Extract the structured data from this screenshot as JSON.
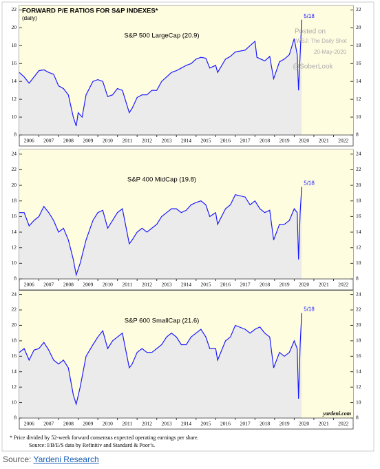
{
  "chart_data": [
    {
      "type": "line",
      "title": "FORWARD P/E RATIOS FOR S&P INDEXES*",
      "subtitle": "(daily)",
      "label": "S&P 500 LargeCap (20.9)",
      "annotations": [
        "5/18",
        "Posted on",
        "WSJ: The Daily Shot",
        "20-May-2020",
        "@SoberLook"
      ],
      "x": [
        2006.0,
        2006.25,
        2006.5,
        2006.75,
        2007.0,
        2007.25,
        2007.5,
        2007.75,
        2008.0,
        2008.25,
        2008.5,
        2008.75,
        2008.9,
        2009.0,
        2009.2,
        2009.4,
        2009.75,
        2010.0,
        2010.25,
        2010.5,
        2010.75,
        2011.0,
        2011.25,
        2011.6,
        2011.75,
        2012.0,
        2012.25,
        2012.5,
        2012.75,
        2013.0,
        2013.25,
        2013.5,
        2013.75,
        2014.0,
        2014.25,
        2014.5,
        2014.75,
        2015.0,
        2015.25,
        2015.5,
        2015.7,
        2016.0,
        2016.1,
        2016.5,
        2016.75,
        2017.0,
        2017.5,
        2017.75,
        2018.0,
        2018.1,
        2018.5,
        2018.75,
        2018.95,
        2019.25,
        2019.5,
        2019.75,
        2020.0,
        2020.15,
        2020.22,
        2020.3,
        2020.38
      ],
      "series": [
        {
          "name": "S&P 500 LargeCap",
          "color": "#1a1aff",
          "values": [
            15,
            14.5,
            13.8,
            14.5,
            15.2,
            15.3,
            15,
            14.8,
            13.5,
            13.2,
            12.5,
            10,
            9,
            10.5,
            10,
            12.5,
            14,
            14.2,
            14,
            12.3,
            12.5,
            13.2,
            13,
            10.5,
            11,
            12.2,
            12.5,
            12.5,
            13,
            13,
            14,
            14.5,
            15,
            15.2,
            15.5,
            15.8,
            16,
            16.5,
            16.7,
            16.6,
            15.5,
            15.8,
            15,
            16.5,
            16.8,
            17.3,
            17.5,
            18,
            18.5,
            16.7,
            16.3,
            16.8,
            14.3,
            16.2,
            16.5,
            17,
            18.8,
            17,
            13,
            17,
            20.9
          ]
        }
      ],
      "xlim": [
        2006,
        2023
      ],
      "ylim": [
        8,
        22.5
      ],
      "yticks": [
        8,
        10,
        12,
        14,
        16,
        18,
        20,
        22
      ],
      "xticks": [
        {
          "value": 2006.5,
          "label": "2006"
        },
        {
          "value": 2007.5,
          "label": "2007"
        },
        {
          "value": 2008.5,
          "label": "2008"
        },
        {
          "value": 2009.5,
          "label": "2009"
        },
        {
          "value": 2010.5,
          "label": "2010"
        },
        {
          "value": 2011.5,
          "label": "2011"
        },
        {
          "value": 2012.5,
          "label": "2012"
        },
        {
          "value": 2013.5,
          "label": "2013"
        },
        {
          "value": 2014.5,
          "label": "2014"
        },
        {
          "value": 2015.5,
          "label": "2015"
        },
        {
          "value": 2016.5,
          "label": "2016"
        },
        {
          "value": 2017.5,
          "label": "2017"
        },
        {
          "value": 2018.5,
          "label": "2018"
        },
        {
          "value": 2019.5,
          "label": "2019"
        },
        {
          "value": 2020.5,
          "label": "2020"
        },
        {
          "value": 2021.5,
          "label": "2021"
        },
        {
          "value": 2022.5,
          "label": "2022"
        }
      ]
    },
    {
      "type": "line",
      "label": "S&P 400 MidCap (19.8)",
      "annotations": [
        "5/18"
      ],
      "x": [
        2006.0,
        2006.25,
        2006.5,
        2006.75,
        2007.0,
        2007.25,
        2007.5,
        2007.75,
        2008.0,
        2008.25,
        2008.5,
        2008.75,
        2008.9,
        2009.1,
        2009.4,
        2009.75,
        2010.0,
        2010.25,
        2010.5,
        2010.75,
        2011.0,
        2011.25,
        2011.6,
        2011.75,
        2012.0,
        2012.25,
        2012.5,
        2012.75,
        2013.0,
        2013.25,
        2013.5,
        2013.75,
        2014.0,
        2014.25,
        2014.5,
        2014.75,
        2015.0,
        2015.25,
        2015.5,
        2015.7,
        2016.0,
        2016.1,
        2016.5,
        2016.75,
        2017.0,
        2017.5,
        2017.75,
        2018.0,
        2018.25,
        2018.5,
        2018.75,
        2018.95,
        2019.25,
        2019.5,
        2019.75,
        2020.0,
        2020.15,
        2020.22,
        2020.3,
        2020.38
      ],
      "series": [
        {
          "name": "S&P 400 MidCap",
          "color": "#1a1aff",
          "values": [
            16.5,
            16.5,
            14.8,
            15.5,
            16,
            17.3,
            16.5,
            15.5,
            14,
            14.5,
            13,
            10.5,
            8.5,
            10,
            13,
            15.5,
            16.5,
            16.8,
            14.5,
            15.5,
            16.5,
            17,
            12.5,
            13,
            14,
            14.5,
            14,
            14.5,
            15,
            16,
            16.5,
            17,
            17,
            16.5,
            16.8,
            17.5,
            17.8,
            18,
            17.5,
            16,
            16.5,
            15,
            17,
            17.5,
            18.8,
            18.5,
            17.5,
            18,
            17,
            16.5,
            16.8,
            13,
            15,
            15,
            15.5,
            17,
            16.5,
            10.5,
            16.5,
            19.8
          ]
        }
      ],
      "xlim": [
        2006,
        2023
      ],
      "ylim": [
        8,
        24.6
      ],
      "yticks": [
        8,
        10,
        12,
        14,
        16,
        18,
        20,
        22,
        24
      ],
      "xticks": [
        {
          "value": 2006.5,
          "label": "2006"
        },
        {
          "value": 2007.5,
          "label": "2007"
        },
        {
          "value": 2008.5,
          "label": "2008"
        },
        {
          "value": 2009.5,
          "label": "2009"
        },
        {
          "value": 2010.5,
          "label": "2010"
        },
        {
          "value": 2011.5,
          "label": "2011"
        },
        {
          "value": 2012.5,
          "label": "2012"
        },
        {
          "value": 2013.5,
          "label": "2013"
        },
        {
          "value": 2014.5,
          "label": "2014"
        },
        {
          "value": 2015.5,
          "label": "2015"
        },
        {
          "value": 2016.5,
          "label": "2016"
        },
        {
          "value": 2017.5,
          "label": "2017"
        },
        {
          "value": 2018.5,
          "label": "2018"
        },
        {
          "value": 2019.5,
          "label": "2019"
        },
        {
          "value": 2020.5,
          "label": "2020"
        },
        {
          "value": 2021.5,
          "label": "2021"
        },
        {
          "value": 2022.5,
          "label": "2022"
        }
      ]
    },
    {
      "type": "line",
      "label": "S&P 600 SmallCap (21.6)",
      "annotations": [
        "5/18",
        "yardeni.com"
      ],
      "x": [
        2006.0,
        2006.25,
        2006.5,
        2006.75,
        2007.0,
        2007.25,
        2007.5,
        2007.75,
        2008.0,
        2008.25,
        2008.5,
        2008.75,
        2008.9,
        2009.1,
        2009.4,
        2009.75,
        2010.0,
        2010.25,
        2010.5,
        2010.75,
        2011.0,
        2011.25,
        2011.6,
        2011.75,
        2012.0,
        2012.25,
        2012.5,
        2012.75,
        2013.0,
        2013.25,
        2013.5,
        2013.75,
        2014.0,
        2014.25,
        2014.5,
        2014.75,
        2015.0,
        2015.25,
        2015.5,
        2015.7,
        2016.0,
        2016.1,
        2016.5,
        2016.75,
        2017.0,
        2017.5,
        2017.75,
        2018.0,
        2018.25,
        2018.5,
        2018.75,
        2018.95,
        2019.25,
        2019.5,
        2019.75,
        2020.0,
        2020.15,
        2020.22,
        2020.3,
        2020.38
      ],
      "series": [
        {
          "name": "S&P 600 SmallCap",
          "color": "#1a1aff",
          "values": [
            16.5,
            17,
            15.5,
            16.8,
            17,
            17.8,
            16.8,
            15.5,
            15,
            15.5,
            14.5,
            11,
            9.8,
            12,
            16,
            17.5,
            18.5,
            19.3,
            17,
            18,
            18.5,
            19,
            14.5,
            15,
            16.5,
            17,
            16.5,
            16.5,
            17,
            17.5,
            18.5,
            19,
            18.5,
            17.5,
            17.5,
            18.5,
            19,
            19.5,
            18.5,
            17,
            17,
            15.5,
            18,
            18.5,
            20,
            19.5,
            19,
            19.5,
            19.8,
            19,
            18.5,
            14.5,
            16.5,
            16,
            16.5,
            18,
            17,
            10.5,
            17.5,
            21.6
          ]
        }
      ],
      "xlim": [
        2006,
        2023
      ],
      "ylim": [
        8,
        24.5
      ],
      "yticks": [
        8,
        10,
        12,
        14,
        16,
        18,
        20,
        22,
        24
      ],
      "xticks": [
        {
          "value": 2006.5,
          "label": "2006"
        },
        {
          "value": 2007.5,
          "label": "2007"
        },
        {
          "value": 2008.5,
          "label": "2008"
        },
        {
          "value": 2009.5,
          "label": "2009"
        },
        {
          "value": 2010.5,
          "label": "2010"
        },
        {
          "value": 2011.5,
          "label": "2011"
        },
        {
          "value": 2012.5,
          "label": "2012"
        },
        {
          "value": 2013.5,
          "label": "2013"
        },
        {
          "value": 2014.5,
          "label": "2014"
        },
        {
          "value": 2015.5,
          "label": "2015"
        },
        {
          "value": 2016.5,
          "label": "2016"
        },
        {
          "value": 2017.5,
          "label": "2017"
        },
        {
          "value": 2018.5,
          "label": "2018"
        },
        {
          "value": 2019.5,
          "label": "2019"
        },
        {
          "value": 2020.5,
          "label": "2020"
        },
        {
          "value": 2021.5,
          "label": "2021"
        },
        {
          "value": 2022.5,
          "label": "2022"
        }
      ]
    }
  ],
  "footnotes": [
    "*  Price divided by 52-week forward consensus expected operating earnings per share.",
    "Source: I/B/E/S data by Refinitiv and Standard & Poor’s."
  ],
  "source": {
    "label": "Source:",
    "link": "Yardeni Research"
  }
}
